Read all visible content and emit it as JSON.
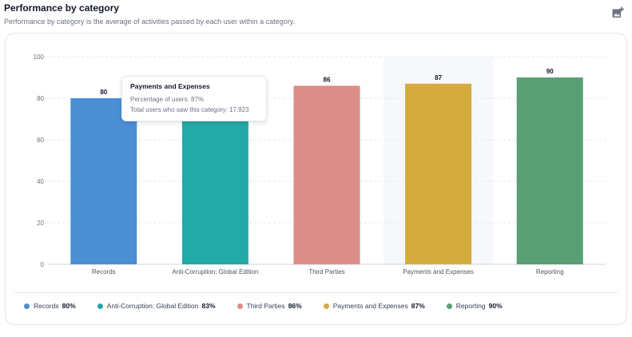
{
  "header": {
    "title": "Performance by category",
    "subtitle": "Performance by category is the average of activities passed by each user within a category.",
    "export_icon": "image-add-icon"
  },
  "tooltip": {
    "title": "Payments and Expenses",
    "percentage_line": "Percentage of users: 87%",
    "users_line": "Total users who saw this category: 17,923"
  },
  "chart_data": {
    "type": "bar",
    "title": "",
    "xlabel": "",
    "ylabel": "",
    "ylim": [
      0,
      100
    ],
    "yticks": [
      0,
      20,
      40,
      60,
      80,
      100
    ],
    "grid": true,
    "categories": [
      "Records",
      "Anti-Corruption: Global Edition",
      "Third Parties",
      "Payments and Expenses",
      "Reporting"
    ],
    "values": [
      80,
      83,
      86,
      87,
      90
    ],
    "colors": [
      "#4a8fd4",
      "#22aaa6",
      "#db8d88",
      "#d4ab3f",
      "#5a9e74"
    ],
    "highlighted_category": "Payments and Expenses",
    "highlight_color": "#f6f8fb",
    "legend_position": "bottom"
  },
  "legend": {
    "items": [
      {
        "label": "Records",
        "value": "80%",
        "color": "#4a8fd4"
      },
      {
        "label": "Anti-Corruption: Global Edition",
        "value": "83%",
        "color": "#22aaa6"
      },
      {
        "label": "Third Parties",
        "value": "86%",
        "color": "#db8d88"
      },
      {
        "label": "Payments and Expenses",
        "value": "87%",
        "color": "#d4ab3f"
      },
      {
        "label": "Reporting",
        "value": "90%",
        "color": "#5a9e74"
      }
    ]
  }
}
